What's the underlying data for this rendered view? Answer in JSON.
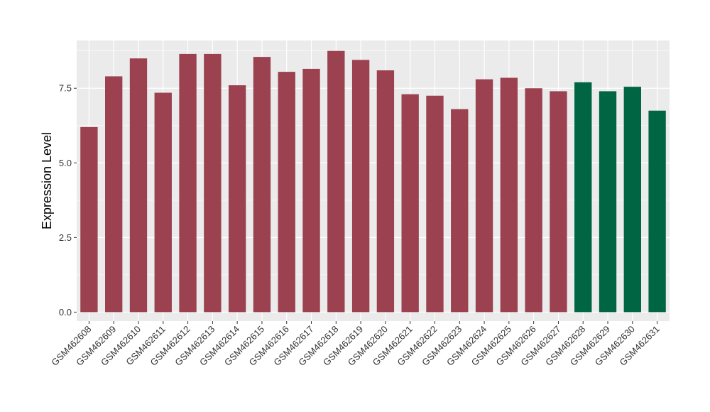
{
  "chart_data": {
    "type": "bar",
    "title": "",
    "xlabel": "",
    "ylabel": "Expression Level",
    "ylim": [
      -0.3,
      9.1
    ],
    "yticks": [
      0.0,
      2.5,
      5.0,
      7.5
    ],
    "ytick_labels": [
      "0.0",
      "2.5",
      "5.0",
      "7.5"
    ],
    "grid": true,
    "legend": "none",
    "categories": [
      "GSM462608",
      "GSM462609",
      "GSM462610",
      "GSM462611",
      "GSM462612",
      "GSM462613",
      "GSM462614",
      "GSM462615",
      "GSM462616",
      "GSM462617",
      "GSM462618",
      "GSM462619",
      "GSM462620",
      "GSM462621",
      "GSM462622",
      "GSM462623",
      "GSM462624",
      "GSM462625",
      "GSM462626",
      "GSM462627",
      "GSM462628",
      "GSM462629",
      "GSM462630",
      "GSM462631"
    ],
    "values": [
      6.2,
      7.9,
      8.5,
      7.35,
      8.65,
      8.65,
      7.6,
      8.55,
      8.05,
      8.15,
      8.75,
      8.45,
      8.1,
      7.3,
      7.25,
      6.8,
      7.8,
      7.85,
      7.5,
      7.4,
      7.7,
      7.4,
      7.55,
      6.75
    ],
    "group_index": [
      0,
      0,
      0,
      0,
      0,
      0,
      0,
      0,
      0,
      0,
      0,
      0,
      0,
      0,
      0,
      0,
      0,
      0,
      0,
      0,
      1,
      1,
      1,
      1
    ],
    "group_colors": [
      "#9b4150",
      "#006543"
    ],
    "panel_color": "#ebebeb",
    "grid_color": "#ffffff"
  }
}
